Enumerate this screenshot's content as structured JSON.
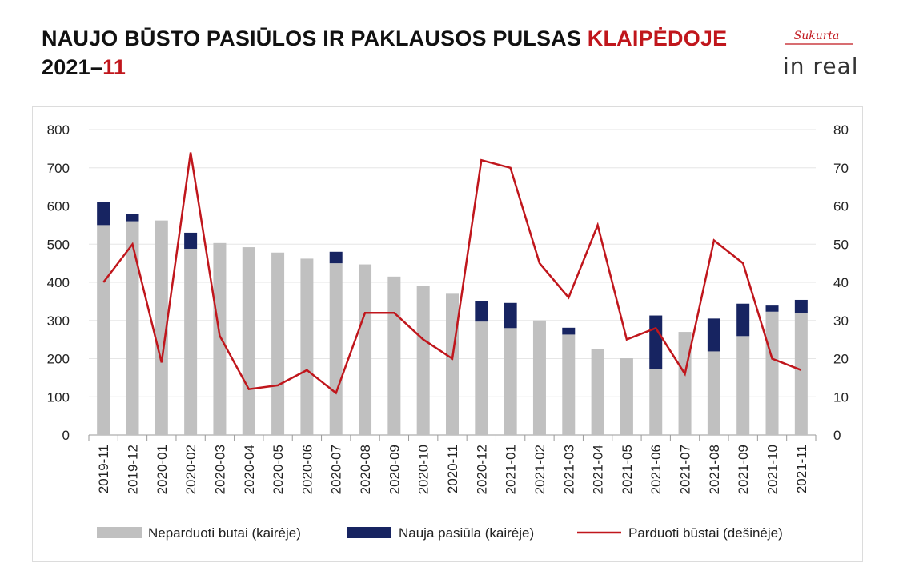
{
  "header": {
    "title_main": "NAUJO BŪSTO PASIŪLOS IR PAKLAUSOS PULSAS ",
    "title_city": "KLAIPĖDOJE",
    "period_year": "2021–",
    "period_month": "11"
  },
  "logos": {
    "top": "Sukurta",
    "bottom": "in real"
  },
  "colors": {
    "unsold": "#c0c0c0",
    "new_supply": "#172461",
    "sold": "#c0161c",
    "accent": "#c0161c"
  },
  "chart_data": {
    "type": "bar",
    "title": "",
    "categories": [
      "2019-11",
      "2019-12",
      "2020-01",
      "2020-02",
      "2020-03",
      "2020-04",
      "2020-05",
      "2020-06",
      "2020-07",
      "2020-08",
      "2020-09",
      "2020-10",
      "2020-11",
      "2020-12",
      "2021-01",
      "2021-02",
      "2021-03",
      "2021-04",
      "2021-05",
      "2021-06",
      "2021-07",
      "2021-08",
      "2021-09",
      "2021-10",
      "2021-11"
    ],
    "series": [
      {
        "name": "Neparduoti butai (kairėje)",
        "kind": "bar",
        "axis": "left",
        "stack": "a",
        "values": [
          550,
          560,
          562,
          488,
          503,
          492,
          478,
          462,
          450,
          447,
          415,
          390,
          370,
          297,
          280,
          300,
          263,
          226,
          201,
          173,
          270,
          219,
          259,
          323,
          320
        ]
      },
      {
        "name": "Nauja pasiūla (kairėje)",
        "kind": "bar",
        "axis": "left",
        "stack": "a",
        "values": [
          60,
          20,
          0,
          42,
          0,
          0,
          0,
          0,
          30,
          0,
          0,
          0,
          0,
          53,
          66,
          0,
          18,
          0,
          0,
          140,
          0,
          86,
          85,
          16,
          34
        ]
      },
      {
        "name": "Parduoti būstai (dešinėje)",
        "kind": "line",
        "axis": "right",
        "values": [
          40,
          50,
          19,
          74,
          26,
          12,
          13,
          17,
          11,
          32,
          32,
          25,
          20,
          72,
          70,
          45,
          36,
          55,
          25,
          28,
          16,
          51,
          45,
          20,
          17
        ]
      }
    ],
    "y_left": {
      "min": 0,
      "max": 800,
      "ticks": [
        0,
        100,
        200,
        300,
        400,
        500,
        600,
        700,
        800
      ]
    },
    "y_right": {
      "min": 0,
      "max": 80,
      "ticks": [
        0,
        10,
        20,
        30,
        40,
        50,
        60,
        70,
        80
      ]
    },
    "grid": true,
    "legend_position": "bottom"
  }
}
